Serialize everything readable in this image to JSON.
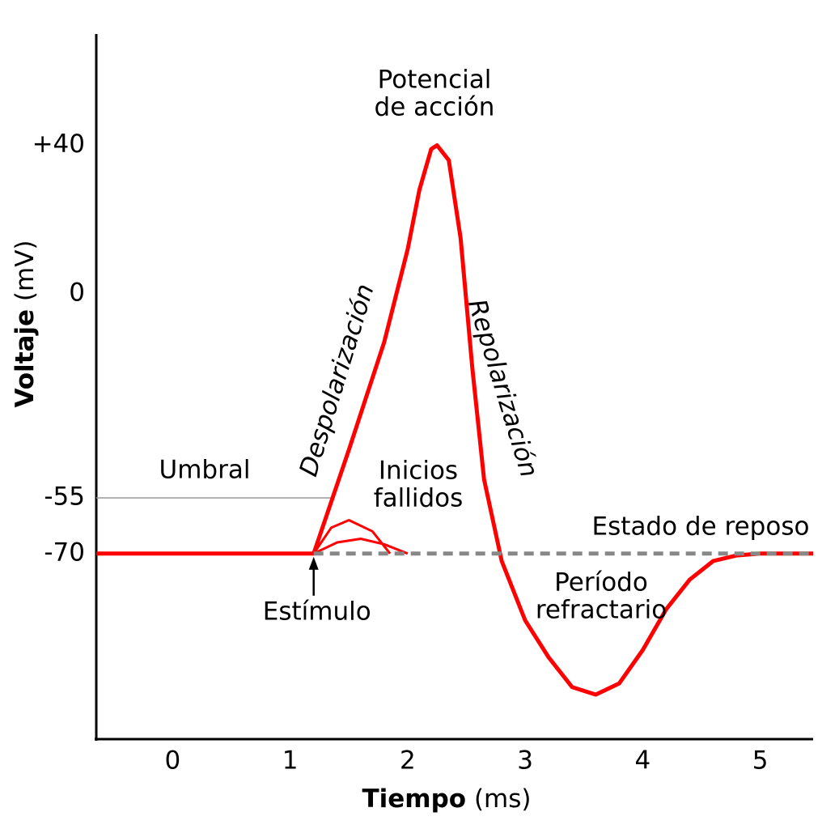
{
  "chart_data": {
    "type": "line",
    "ylabel": "Voltaje",
    "yunit": "(mV)",
    "xlabel": "Tiempo",
    "xunit": "(ms)",
    "xlim": [
      -0.65,
      5.45
    ],
    "ylim": [
      -120,
      70
    ],
    "xticks": [
      0,
      1,
      2,
      3,
      4,
      5
    ],
    "yticks": [
      {
        "value": 40,
        "label": "+40"
      },
      0,
      -55,
      -70
    ],
    "grid": false,
    "series": [
      {
        "color": "#999999",
        "style": "thin",
        "x": [
          -0.65,
          1.35
        ],
        "values": [
          -55,
          -55
        ]
      },
      {
        "color": "#ff0000",
        "style": "medium",
        "x": [
          1.2,
          1.35,
          1.5,
          1.7,
          1.85
        ],
        "values": [
          -70,
          -63,
          -61,
          -64,
          -70
        ]
      },
      {
        "color": "#ff0000",
        "style": "medium",
        "x": [
          1.2,
          1.4,
          1.6,
          1.8,
          2.0
        ],
        "values": [
          -70,
          -67,
          -66,
          -67.5,
          -70
        ]
      },
      {
        "color": "#ff0000",
        "style": "thick",
        "x": [
          -0.65,
          1.2,
          1.5,
          1.8,
          2.0,
          2.1,
          2.2,
          2.25,
          2.35,
          2.45,
          2.55,
          2.65,
          2.8,
          3.0,
          3.2,
          3.4,
          3.6,
          3.8,
          4.0,
          4.2,
          4.4,
          4.6,
          4.8,
          5.0,
          5.45
        ],
        "values": [
          -70,
          -70,
          -42,
          -13,
          12,
          28,
          39,
          40,
          36,
          15,
          -20,
          -50,
          -72,
          -88,
          -98,
          -106,
          -108,
          -105,
          -96,
          -85,
          -77,
          -72,
          -70.5,
          -70,
          -70
        ]
      },
      {
        "color": "#888888",
        "style": "dashed",
        "x": [
          1.2,
          5.45
        ],
        "values": [
          -70,
          -70
        ]
      }
    ],
    "stimulus": {
      "x": 1.2,
      "label": "Estímulo"
    },
    "annotations": [
      [
        "Potencial",
        "de acción"
      ],
      [
        "Despolarización"
      ],
      [
        "Repolarización"
      ],
      [
        "Umbral"
      ],
      [
        "Inicios",
        "fallidos"
      ],
      [
        "Estado de reposo"
      ],
      [
        "Período",
        "refractario"
      ]
    ]
  }
}
